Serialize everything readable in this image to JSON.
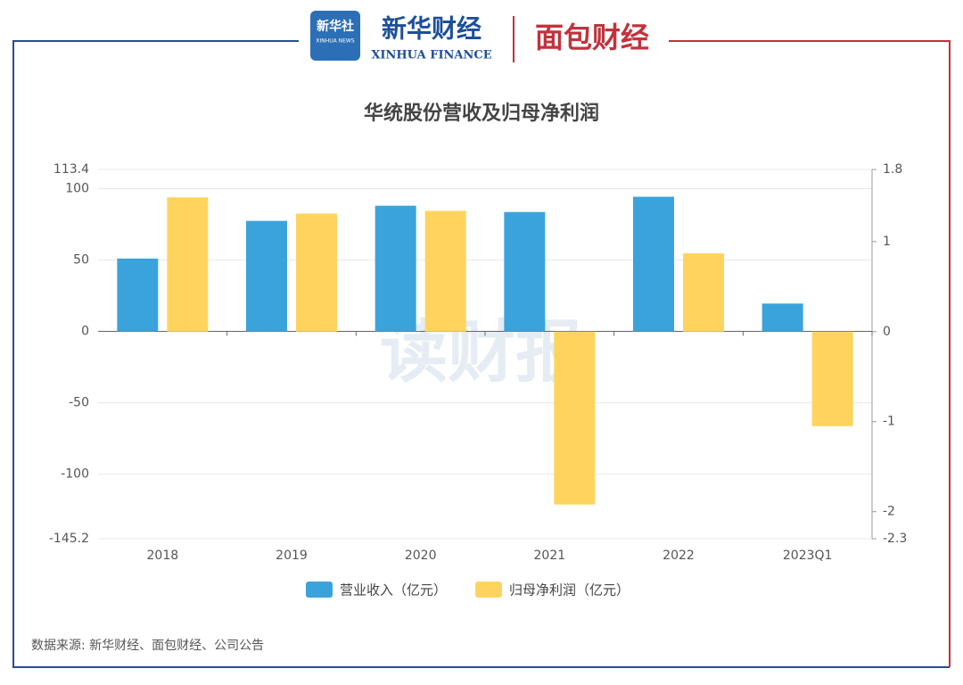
{
  "header": {
    "logo1": "新华社",
    "logo1_sub": "XINHUA NEWS",
    "logo2": "新华财经",
    "logo2_sub": "XINHUA FINANCE",
    "logo3": "面包财经"
  },
  "watermark": "读财报",
  "source": "数据来源: 新华财经、面包财经、公司公告",
  "chart_data": {
    "type": "bar",
    "title": "华统股份营收及归母净利润",
    "categories": [
      "2018",
      "2019",
      "2020",
      "2021",
      "2022",
      "2023Q1"
    ],
    "series": [
      {
        "name": "营业收入（亿元）",
        "color": "#3ba3dc",
        "values": [
          51,
          77.4,
          88,
          83.6,
          94.3,
          19.5
        ]
      },
      {
        "name": "归母净利润（亿元）",
        "color": "#ffd45e",
        "axis": "y2",
        "values": [
          1.49,
          1.31,
          1.34,
          -1.92,
          0.87,
          -1.05
        ]
      }
    ],
    "ylim": [
      -145.2,
      113.4
    ],
    "yticks": [
      113.4,
      100,
      50,
      0,
      -50,
      -100,
      -145.2
    ],
    "y2lim": [
      -2.3,
      1.8
    ],
    "y2ticks": [
      1.8,
      1,
      0,
      -1,
      -2,
      -2.3
    ],
    "grid": true,
    "legend": "bottom"
  }
}
